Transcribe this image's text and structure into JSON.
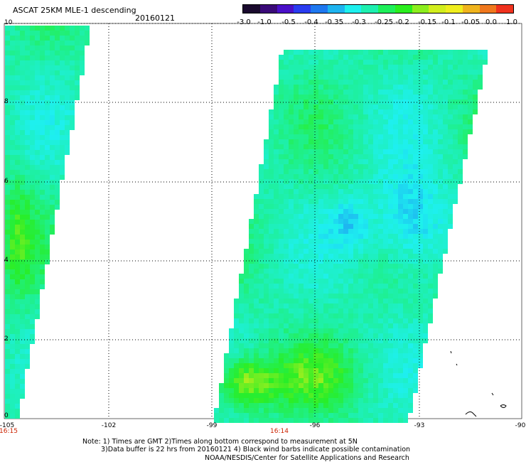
{
  "header": {
    "title": "ASCAT 25KM MLE-1 descending",
    "date": "20160121"
  },
  "colorbar": {
    "labels": [
      "-3.0",
      "-1.0",
      "-0.5",
      "-0.4",
      "-0.35",
      "-0.3",
      "-0.25",
      "-0.2",
      "-0.15",
      "-0.1",
      "-0.05",
      "0.0",
      "1.0"
    ],
    "colors": [
      "#1a0a2e",
      "#3a0a78",
      "#4a10c8",
      "#2a3cf0",
      "#1e78f0",
      "#1eb4f0",
      "#1ef0ee",
      "#1ef0b0",
      "#1ef05a",
      "#2aee1e",
      "#8cee1e",
      "#d2ee1e",
      "#f0ee1e",
      "#f0b41e",
      "#f0781e",
      "#f0321e"
    ]
  },
  "axes": {
    "y_ticks": [
      "10",
      "8",
      "6",
      "4",
      "2",
      "0"
    ],
    "x_ticks": [
      "-105",
      "-102",
      "-99",
      "-96",
      "-93",
      "-90"
    ]
  },
  "times": {
    "left": "16:15",
    "middle": "16:14"
  },
  "notes": {
    "line1": "Note: 1) Times are GMT 2)Times along bottom correspond to measurement at 5N",
    "line2": "3)Data buffer is 22 hrs from 20160121 4) Black wind barbs indicate possible contamination",
    "line3": "NOAA/NESDIS/Center for Satellite Applications and Research"
  }
}
